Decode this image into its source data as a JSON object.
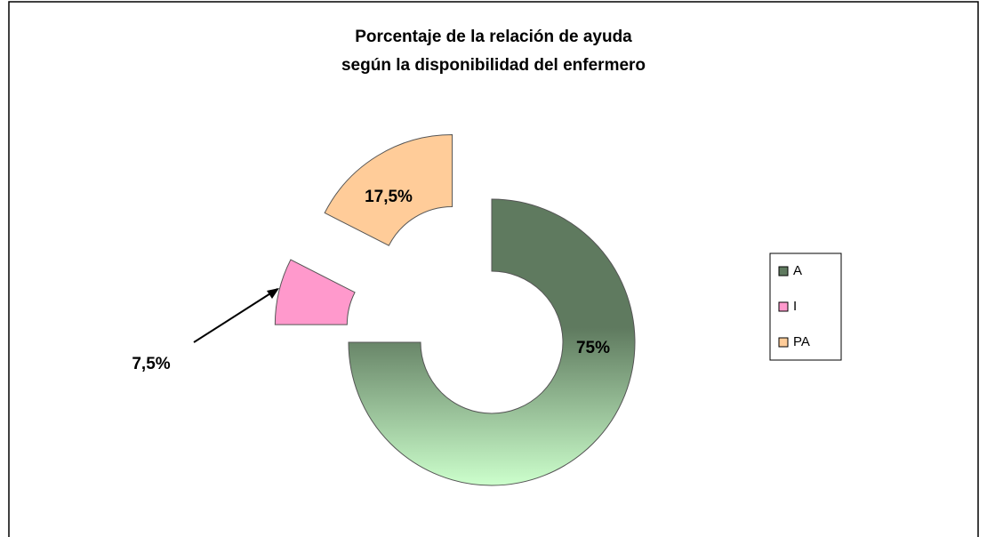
{
  "chart_data": {
    "type": "donut",
    "title": [
      "Porcentaje de la relación de ayuda",
      "según la disponibilidad del enfermero"
    ],
    "categories": [
      "A",
      "I",
      "PA"
    ],
    "values": [
      75,
      7.5,
      17.5
    ],
    "value_labels": [
      "75%",
      "7,5%",
      "17,5%"
    ],
    "colors": [
      "#5f7a5f",
      "#ff99cc",
      "#ffcc99"
    ],
    "legend": "right"
  }
}
